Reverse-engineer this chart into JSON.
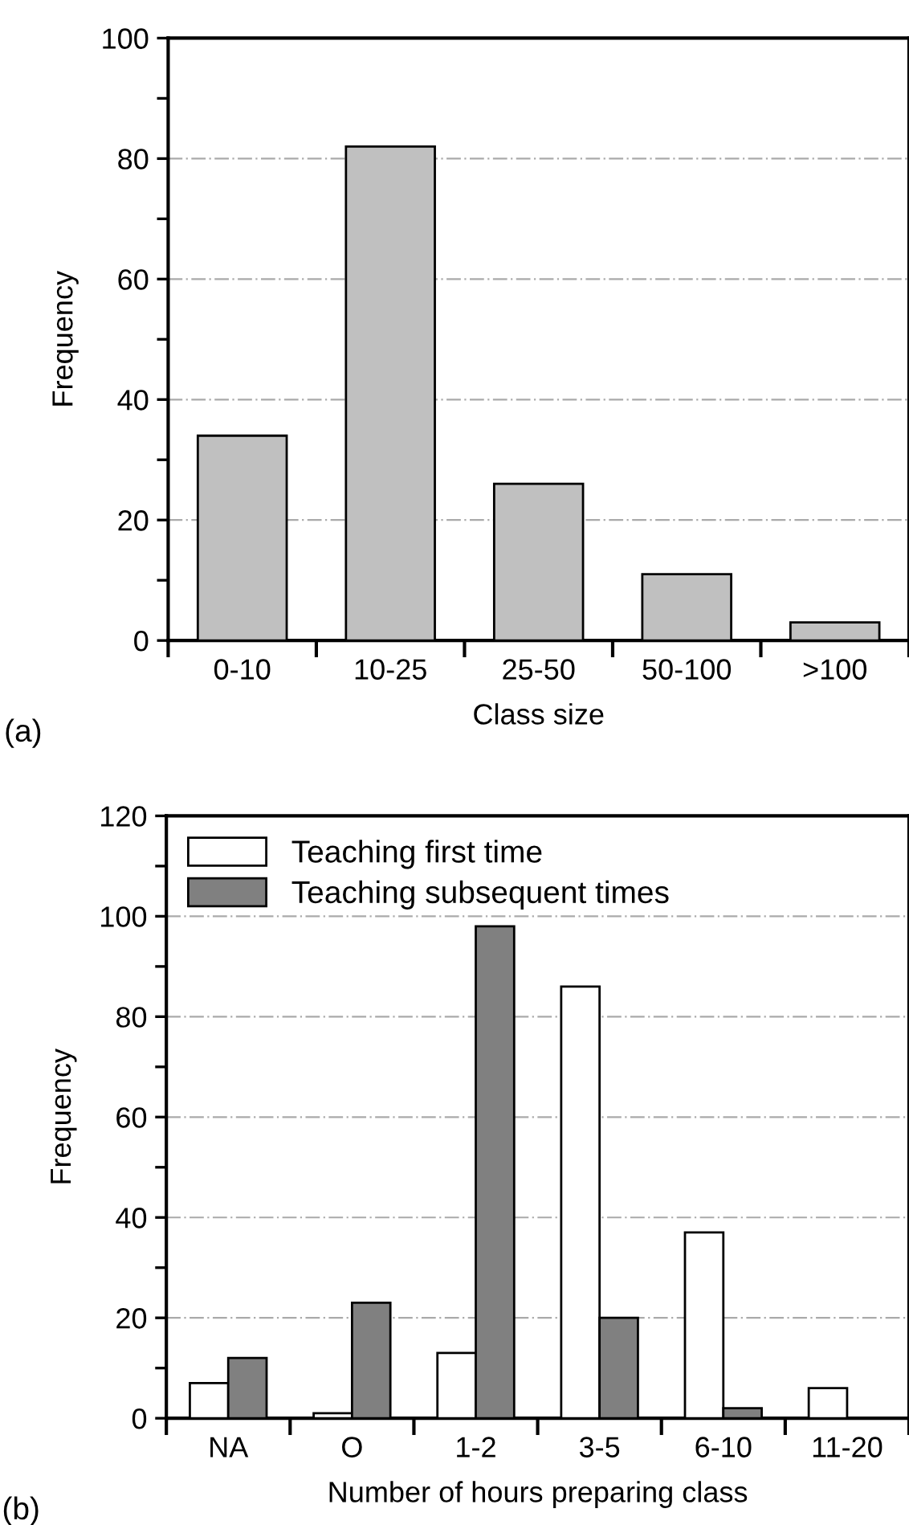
{
  "chart_data": [
    {
      "type": "bar",
      "xlabel": "Class size",
      "ylabel": "Frequency",
      "categories": [
        "0-10",
        "10-25",
        "25-50",
        "50-100",
        ">100"
      ],
      "series": [
        {
          "color": "#c0c0c0",
          "values": [
            34,
            82,
            26,
            11,
            3
          ]
        }
      ],
      "ylim": [
        0,
        100
      ],
      "yticks": [
        0,
        {
          "value": 10,
          "label": null
        },
        20,
        {
          "value": 30,
          "label": null
        },
        40,
        {
          "value": 50,
          "label": null
        },
        60,
        {
          "value": 70,
          "label": null
        },
        80,
        {
          "value": 90,
          "label": null
        },
        100
      ],
      "grid": "y",
      "legend": false,
      "annotations": [
        "(a)"
      ]
    },
    {
      "type": "bar",
      "xlabel": "Number of hours preparing class",
      "ylabel": "Frequency",
      "categories": [
        "NA",
        "O",
        "1-2",
        "3-5",
        "6-10",
        "11-20"
      ],
      "series": [
        {
          "name": "Teaching first time",
          "color": "#ffffff",
          "values": [
            7,
            1,
            13,
            86,
            37,
            6
          ]
        },
        {
          "name": "Teaching subsequent times",
          "color": "#808080",
          "values": [
            12,
            23,
            98,
            20,
            2,
            0
          ]
        }
      ],
      "ylim": [
        0,
        120
      ],
      "yticks": [
        0,
        {
          "value": 10,
          "label": null
        },
        20,
        {
          "value": 30,
          "label": null
        },
        40,
        {
          "value": 50,
          "label": null
        },
        60,
        {
          "value": 70,
          "label": null
        },
        80,
        {
          "value": 90,
          "label": null
        },
        100,
        {
          "value": 110,
          "label": null
        },
        120
      ],
      "grid": "y",
      "legend": "top left",
      "annotations": [
        "(b)"
      ]
    }
  ]
}
